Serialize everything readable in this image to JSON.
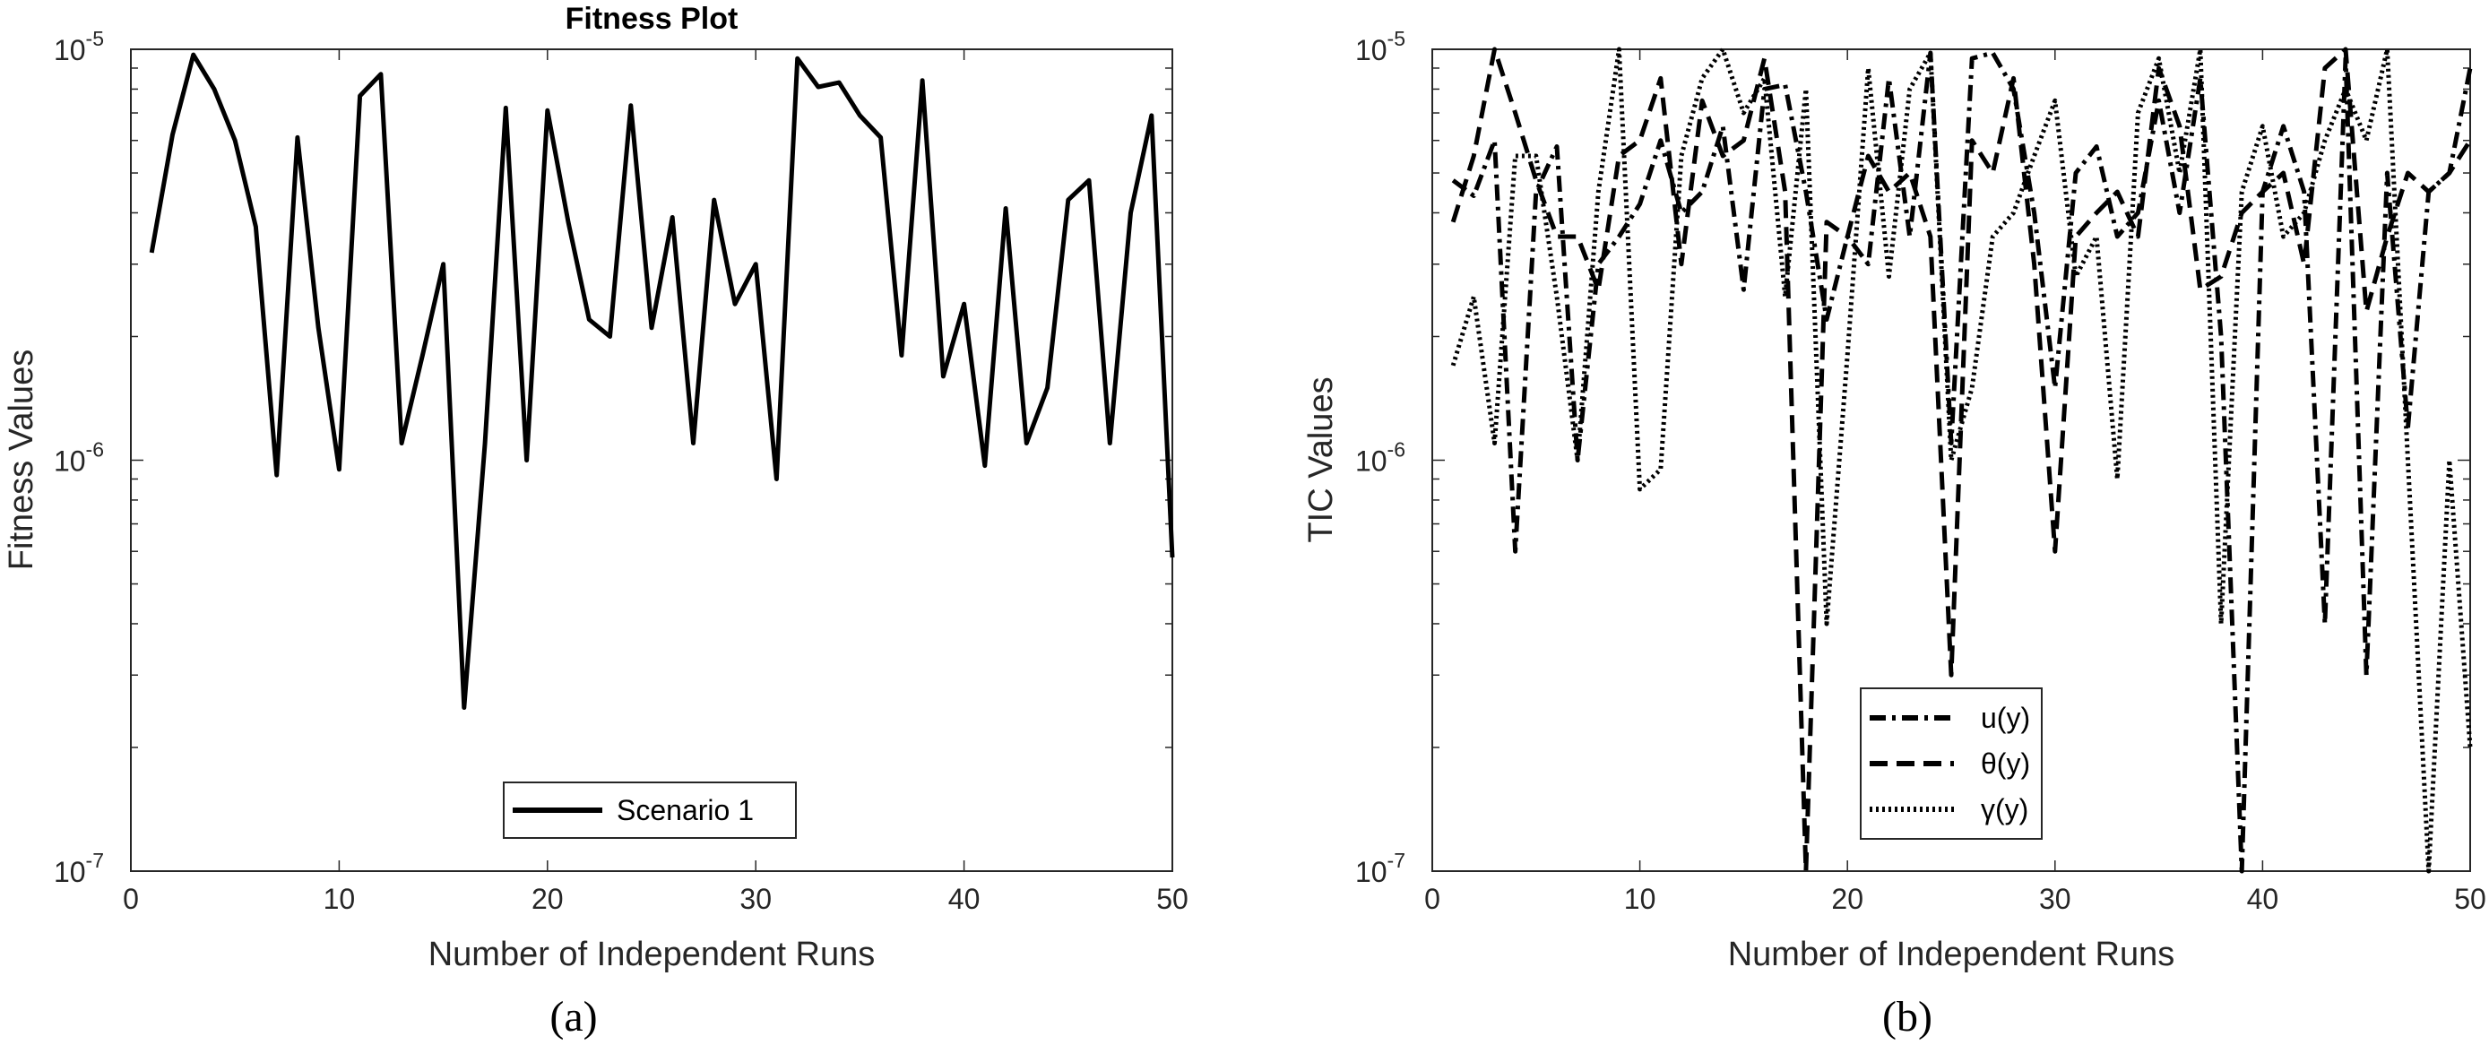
{
  "chart_data": [
    {
      "type": "line",
      "title": "Fitness Plot",
      "xlabel": "Number of Independent Runs",
      "ylabel": "Fitness Values",
      "yscale": "log",
      "xlim": [
        0,
        50
      ],
      "ylim": [
        1e-07,
        1e-05
      ],
      "xticks": [
        "0",
        "10",
        "20",
        "30",
        "40",
        "50"
      ],
      "yticks": [
        {
          "base": "10",
          "exp": "-7"
        },
        {
          "base": "10",
          "exp": "-6"
        },
        {
          "base": "10",
          "exp": "-5"
        }
      ],
      "legend_position": "bottom-center",
      "caption": "(a)",
      "x": [
        1,
        2,
        3,
        4,
        5,
        6,
        7,
        8,
        9,
        10,
        11,
        12,
        13,
        14,
        15,
        16,
        17,
        18,
        19,
        20,
        21,
        22,
        23,
        24,
        25,
        26,
        27,
        28,
        29,
        30,
        31,
        32,
        33,
        34,
        35,
        36,
        37,
        38,
        39,
        40,
        41,
        42,
        43,
        44,
        45,
        46,
        47,
        48,
        49,
        50
      ],
      "series": [
        {
          "name": "Scenario 1",
          "style": "solid",
          "values": [
            3.2e-06,
            6.2e-06,
            9.7e-06,
            8e-06,
            6e-06,
            3.7e-06,
            9.2e-07,
            6.1e-06,
            2.1e-06,
            9.5e-07,
            7.7e-06,
            8.7e-06,
            1.1e-06,
            1.8e-06,
            3e-06,
            2.5e-07,
            1.1e-06,
            7.2e-06,
            1e-06,
            7.1e-06,
            3.8e-06,
            2.2e-06,
            2e-06,
            7.3e-06,
            2.1e-06,
            3.9e-06,
            1.1e-06,
            4.3e-06,
            2.4e-06,
            3e-06,
            9e-07,
            9.5e-06,
            8.1e-06,
            8.3e-06,
            6.9e-06,
            6.1e-06,
            1.8e-06,
            8.4e-06,
            1.6e-06,
            2.4e-06,
            9.7e-07,
            4.1e-06,
            1.1e-06,
            1.5e-06,
            4.3e-06,
            4.8e-06,
            1.1e-06,
            4e-06,
            6.9e-06,
            5.8e-07
          ]
        }
      ]
    },
    {
      "type": "line",
      "title": "",
      "xlabel": "Number of Independent Runs",
      "ylabel": "TIC Values",
      "yscale": "log",
      "xlim": [
        0,
        50
      ],
      "ylim": [
        1e-07,
        1e-05
      ],
      "xticks": [
        "0",
        "10",
        "20",
        "30",
        "40",
        "50"
      ],
      "yticks": [
        {
          "base": "10",
          "exp": "-7"
        },
        {
          "base": "10",
          "exp": "-6"
        },
        {
          "base": "10",
          "exp": "-5"
        }
      ],
      "legend_position": "bottom-center",
      "caption": "(b)",
      "x": [
        1,
        2,
        3,
        4,
        5,
        6,
        7,
        8,
        9,
        10,
        11,
        12,
        13,
        14,
        15,
        16,
        17,
        18,
        19,
        20,
        21,
        22,
        23,
        24,
        25,
        26,
        27,
        28,
        29,
        30,
        31,
        32,
        33,
        34,
        35,
        36,
        37,
        38,
        39,
        40,
        41,
        42,
        43,
        44,
        45,
        46,
        47,
        48,
        49,
        50
      ],
      "series": [
        {
          "name": "u(y)",
          "style": "dashdot",
          "values": [
            4.8e-06,
            4.4e-06,
            6e-06,
            6e-07,
            4.5e-06,
            5.8e-06,
            1e-06,
            3e-06,
            3.5e-06,
            4.2e-06,
            6e-06,
            4e-06,
            4.5e-06,
            6.5e-06,
            2.6e-06,
            8e-06,
            8.2e-06,
            4.5e-06,
            2.2e-06,
            3.5e-06,
            3e-06,
            8.5e-06,
            3.5e-06,
            9.8e-06,
            1.1e-06,
            9.5e-06,
            9.8e-06,
            8e-06,
            4e-06,
            1.5e-06,
            5e-06,
            5.8e-06,
            3.5e-06,
            4e-06,
            7.5e-06,
            4e-06,
            8.5e-06,
            2e-06,
            1e-07,
            4.5e-06,
            6.5e-06,
            4.5e-06,
            4e-07,
            9.5e-06,
            3e-07,
            5e-06,
            1.2e-06,
            4.5e-06,
            5e-06,
            9e-06
          ]
        },
        {
          "name": "θ(y)",
          "style": "dashed",
          "values": [
            3.8e-06,
            5.5e-06,
            1e-05,
            7e-06,
            4.8e-06,
            3.5e-06,
            3.5e-06,
            2.6e-06,
            5.5e-06,
            6e-06,
            8.5e-06,
            3e-06,
            7.5e-06,
            5.5e-06,
            6e-06,
            9.5e-06,
            4.5e-06,
            1e-07,
            3.8e-06,
            3.5e-06,
            5.5e-06,
            4.5e-06,
            5e-06,
            3.5e-06,
            3e-07,
            6e-06,
            5e-06,
            8.5e-06,
            3e-06,
            6e-07,
            3.5e-06,
            4e-06,
            4.5e-06,
            3.5e-06,
            9e-06,
            6.5e-06,
            2.6e-06,
            2.8e-06,
            4e-06,
            4.5e-06,
            5e-06,
            3e-06,
            9e-06,
            1e-05,
            2.3e-06,
            3.5e-06,
            5e-06,
            4.5e-06,
            5e-06,
            6e-06
          ]
        },
        {
          "name": "γ(y)",
          "style": "dotted",
          "values": [
            1.7e-06,
            2.5e-06,
            1.1e-06,
            5.5e-06,
            5.5e-06,
            2.5e-06,
            1e-06,
            4.5e-06,
            1e-05,
            8.5e-07,
            9.5e-07,
            5.5e-06,
            8.5e-06,
            1e-05,
            7e-06,
            8.5e-06,
            2.5e-06,
            8e-06,
            4e-07,
            1.8e-06,
            9e-06,
            2.8e-06,
            8e-06,
            9.8e-06,
            1e-06,
            1.5e-06,
            3.5e-06,
            4e-06,
            5.5e-06,
            7.5e-06,
            2.8e-06,
            3.5e-06,
            9e-07,
            7e-06,
            9.5e-06,
            5e-06,
            1e-05,
            4e-07,
            4.5e-06,
            6.5e-06,
            3.5e-06,
            4e-06,
            6e-06,
            8e-06,
            6e-06,
            1e-05,
            1e-06,
            1e-07,
            1e-06,
            2e-07
          ]
        }
      ]
    }
  ]
}
